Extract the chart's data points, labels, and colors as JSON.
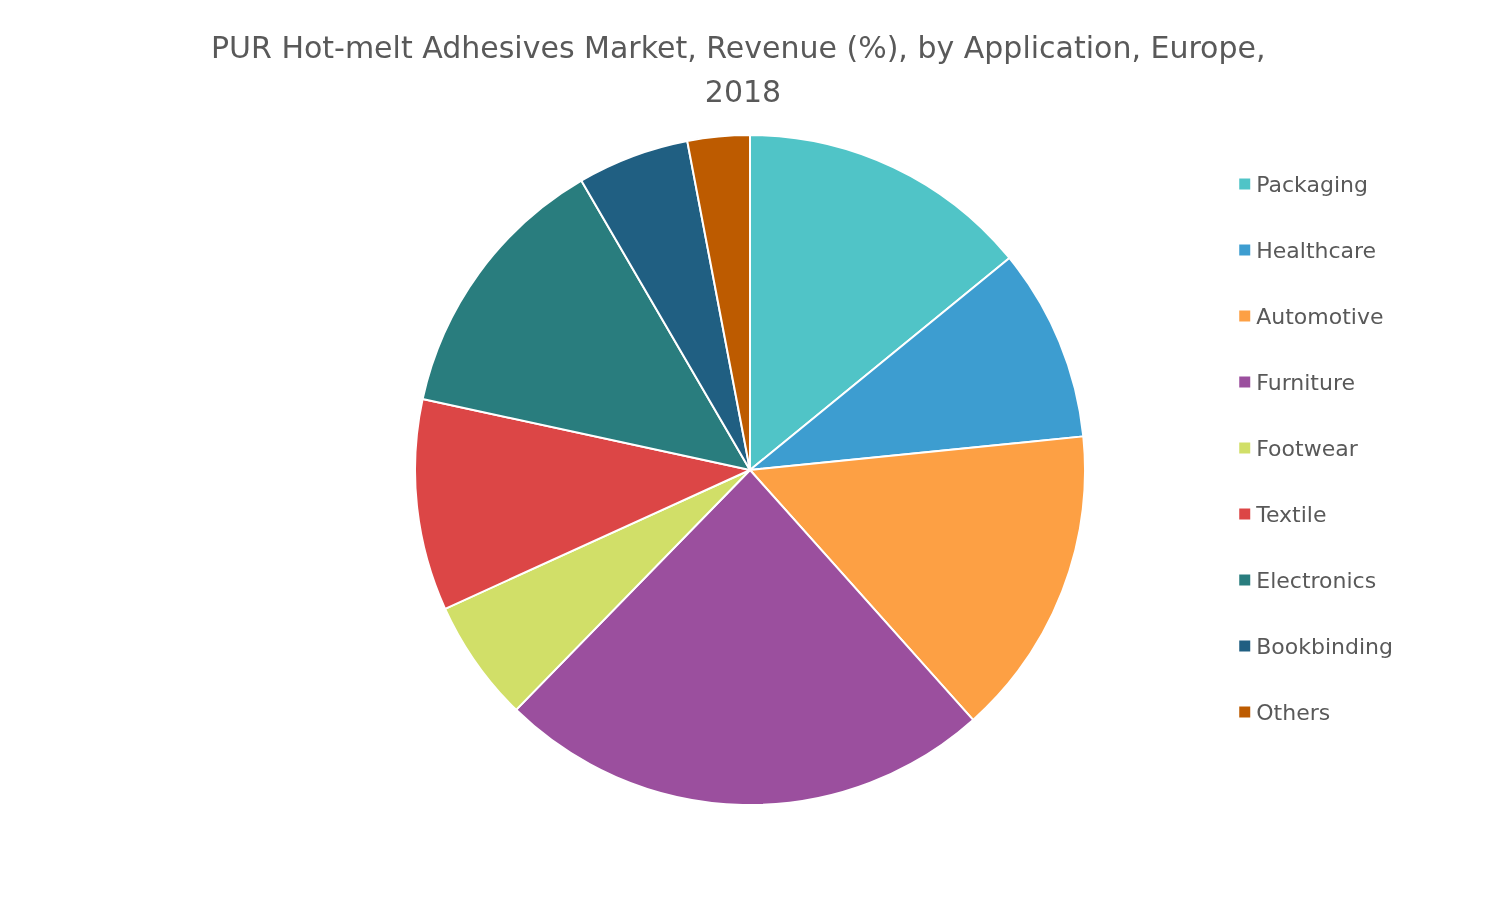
{
  "chart_data": {
    "type": "pie",
    "title": "PUR Hot-melt Adhesives Market, Revenue (%), by Application, Europe, 2018",
    "categories": [
      "Packaging",
      "Healthcare",
      "Automotive",
      "Furniture",
      "Footwear",
      "Textile",
      "Electronics",
      "Bookbinding",
      "Others"
    ],
    "values": [
      14.1,
      9.3,
      15,
      23.9,
      5.9,
      10.2,
      13.2,
      5.4,
      3.0
    ],
    "colors": [
      "#50c4c7",
      "#3d9dd0",
      "#fda044",
      "#9b4f9e",
      "#d1df68",
      "#dc4646",
      "#297d7e",
      "#205f82",
      "#bd5b00"
    ],
    "legend": "right"
  }
}
